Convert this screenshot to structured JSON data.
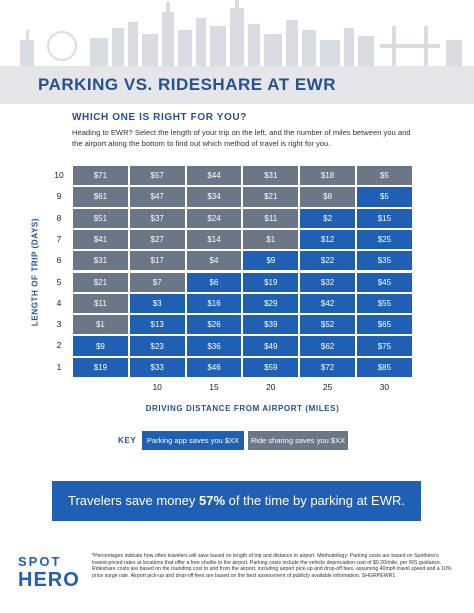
{
  "header": {
    "title": "PARKING VS. RIDESHARE AT EWR",
    "subtitle": "WHICH ONE IS RIGHT FOR YOU?",
    "intro": "Heading to EWR? Select the length of your trip on the left, and the number of miles between you and the airport along the bottom to find out which method of travel is right for you."
  },
  "grid": {
    "y_title": "LENGTH OF TRIP (DAYS)",
    "x_title": "DRIVING DISTANCE FROM AIRPORT (MILES)",
    "columns": [
      null,
      "10",
      "15",
      "20",
      "25",
      "30"
    ],
    "rows": [
      {
        "label": "10",
        "cells": [
          {
            "text": "$71",
            "key": 1
          },
          {
            "text": "$57",
            "key": 1
          },
          {
            "text": "$44",
            "key": 1
          },
          {
            "text": "$31",
            "key": 1
          },
          {
            "text": "$18",
            "key": 1
          },
          {
            "text": "$5",
            "key": 1
          }
        ]
      },
      {
        "label": "9",
        "cells": [
          {
            "text": "$61",
            "key": 1
          },
          {
            "text": "$47",
            "key": 1
          },
          {
            "text": "$34",
            "key": 1
          },
          {
            "text": "$21",
            "key": 1
          },
          {
            "text": "$8",
            "key": 1
          },
          {
            "text": "$5",
            "key": 0
          }
        ]
      },
      {
        "label": "8",
        "cells": [
          {
            "text": "$51",
            "key": 1
          },
          {
            "text": "$37",
            "key": 1
          },
          {
            "text": "$24",
            "key": 1
          },
          {
            "text": "$11",
            "key": 1
          },
          {
            "text": "$2",
            "key": 0
          },
          {
            "text": "$15",
            "key": 0
          }
        ]
      },
      {
        "label": "7",
        "cells": [
          {
            "text": "$41",
            "key": 1
          },
          {
            "text": "$27",
            "key": 1
          },
          {
            "text": "$14",
            "key": 1
          },
          {
            "text": "$1",
            "key": 1
          },
          {
            "text": "$12",
            "key": 0
          },
          {
            "text": "$25",
            "key": 0
          }
        ]
      },
      {
        "label": "6",
        "cells": [
          {
            "text": "$31",
            "key": 1
          },
          {
            "text": "$17",
            "key": 1
          },
          {
            "text": "$4",
            "key": 1
          },
          {
            "text": "$9",
            "key": 0
          },
          {
            "text": "$22",
            "key": 0
          },
          {
            "text": "$35",
            "key": 0
          }
        ]
      },
      {
        "label": "5",
        "cells": [
          {
            "text": "$21",
            "key": 1
          },
          {
            "text": "$7",
            "key": 1
          },
          {
            "text": "$6",
            "key": 0
          },
          {
            "text": "$19",
            "key": 0
          },
          {
            "text": "$32",
            "key": 0
          },
          {
            "text": "$45",
            "key": 0
          }
        ]
      },
      {
        "label": "4",
        "cells": [
          {
            "text": "$11",
            "key": 1
          },
          {
            "text": "$3",
            "key": 0
          },
          {
            "text": "$16",
            "key": 0
          },
          {
            "text": "$29",
            "key": 0
          },
          {
            "text": "$42",
            "key": 0
          },
          {
            "text": "$55",
            "key": 0
          }
        ]
      },
      {
        "label": "3",
        "cells": [
          {
            "text": "$1",
            "key": 1
          },
          {
            "text": "$13",
            "key": 0
          },
          {
            "text": "$26",
            "key": 0
          },
          {
            "text": "$39",
            "key": 0
          },
          {
            "text": "$52",
            "key": 0
          },
          {
            "text": "$65",
            "key": 0
          }
        ]
      },
      {
        "label": "2",
        "cells": [
          {
            "text": "$9",
            "key": 0
          },
          {
            "text": "$23",
            "key": 0
          },
          {
            "text": "$36",
            "key": 0
          },
          {
            "text": "$49",
            "key": 0
          },
          {
            "text": "$62",
            "key": 0
          },
          {
            "text": "$75",
            "key": 0
          }
        ]
      },
      {
        "label": "1",
        "cells": [
          {
            "text": "$19",
            "key": 0
          },
          {
            "text": "$33",
            "key": 0
          },
          {
            "text": "$46",
            "key": 0
          },
          {
            "text": "$59",
            "key": 0
          },
          {
            "text": "$72",
            "key": 0
          },
          {
            "text": "$85",
            "key": 0
          }
        ]
      }
    ]
  },
  "key": {
    "label": "KEY",
    "items": [
      {
        "text": "Parking app saves you $XX",
        "color": "#1f5fb4"
      },
      {
        "text": "Ride sharing saves you $XX",
        "color": "#6b7786"
      }
    ]
  },
  "banner": {
    "before": "Travelers save money ",
    "highlight": "57%",
    "after": " of the time by parking at EWR."
  },
  "logo": {
    "line1": "SPOT",
    "line2": "HERO"
  },
  "notes": "*Percentages indicate how often travelers will save based on length of trip and distance to airport. Methodology: Parking costs are based on Spothero's lowest-priced rates at locations that offer a free shuttle to the airport. Parking costs include the vehicle depreciation cost of $0.20/mile, per IRS guidance. Rideshare costs are based on the roundtrip cost to and from the airport, including airport pick-up and drop-off fees, assuming 40mph travel speed and a 10% price surge rate. Airport pick-up and drop-off fees are based on the best assessment of publicly available information. SHGRPEWR1"
}
